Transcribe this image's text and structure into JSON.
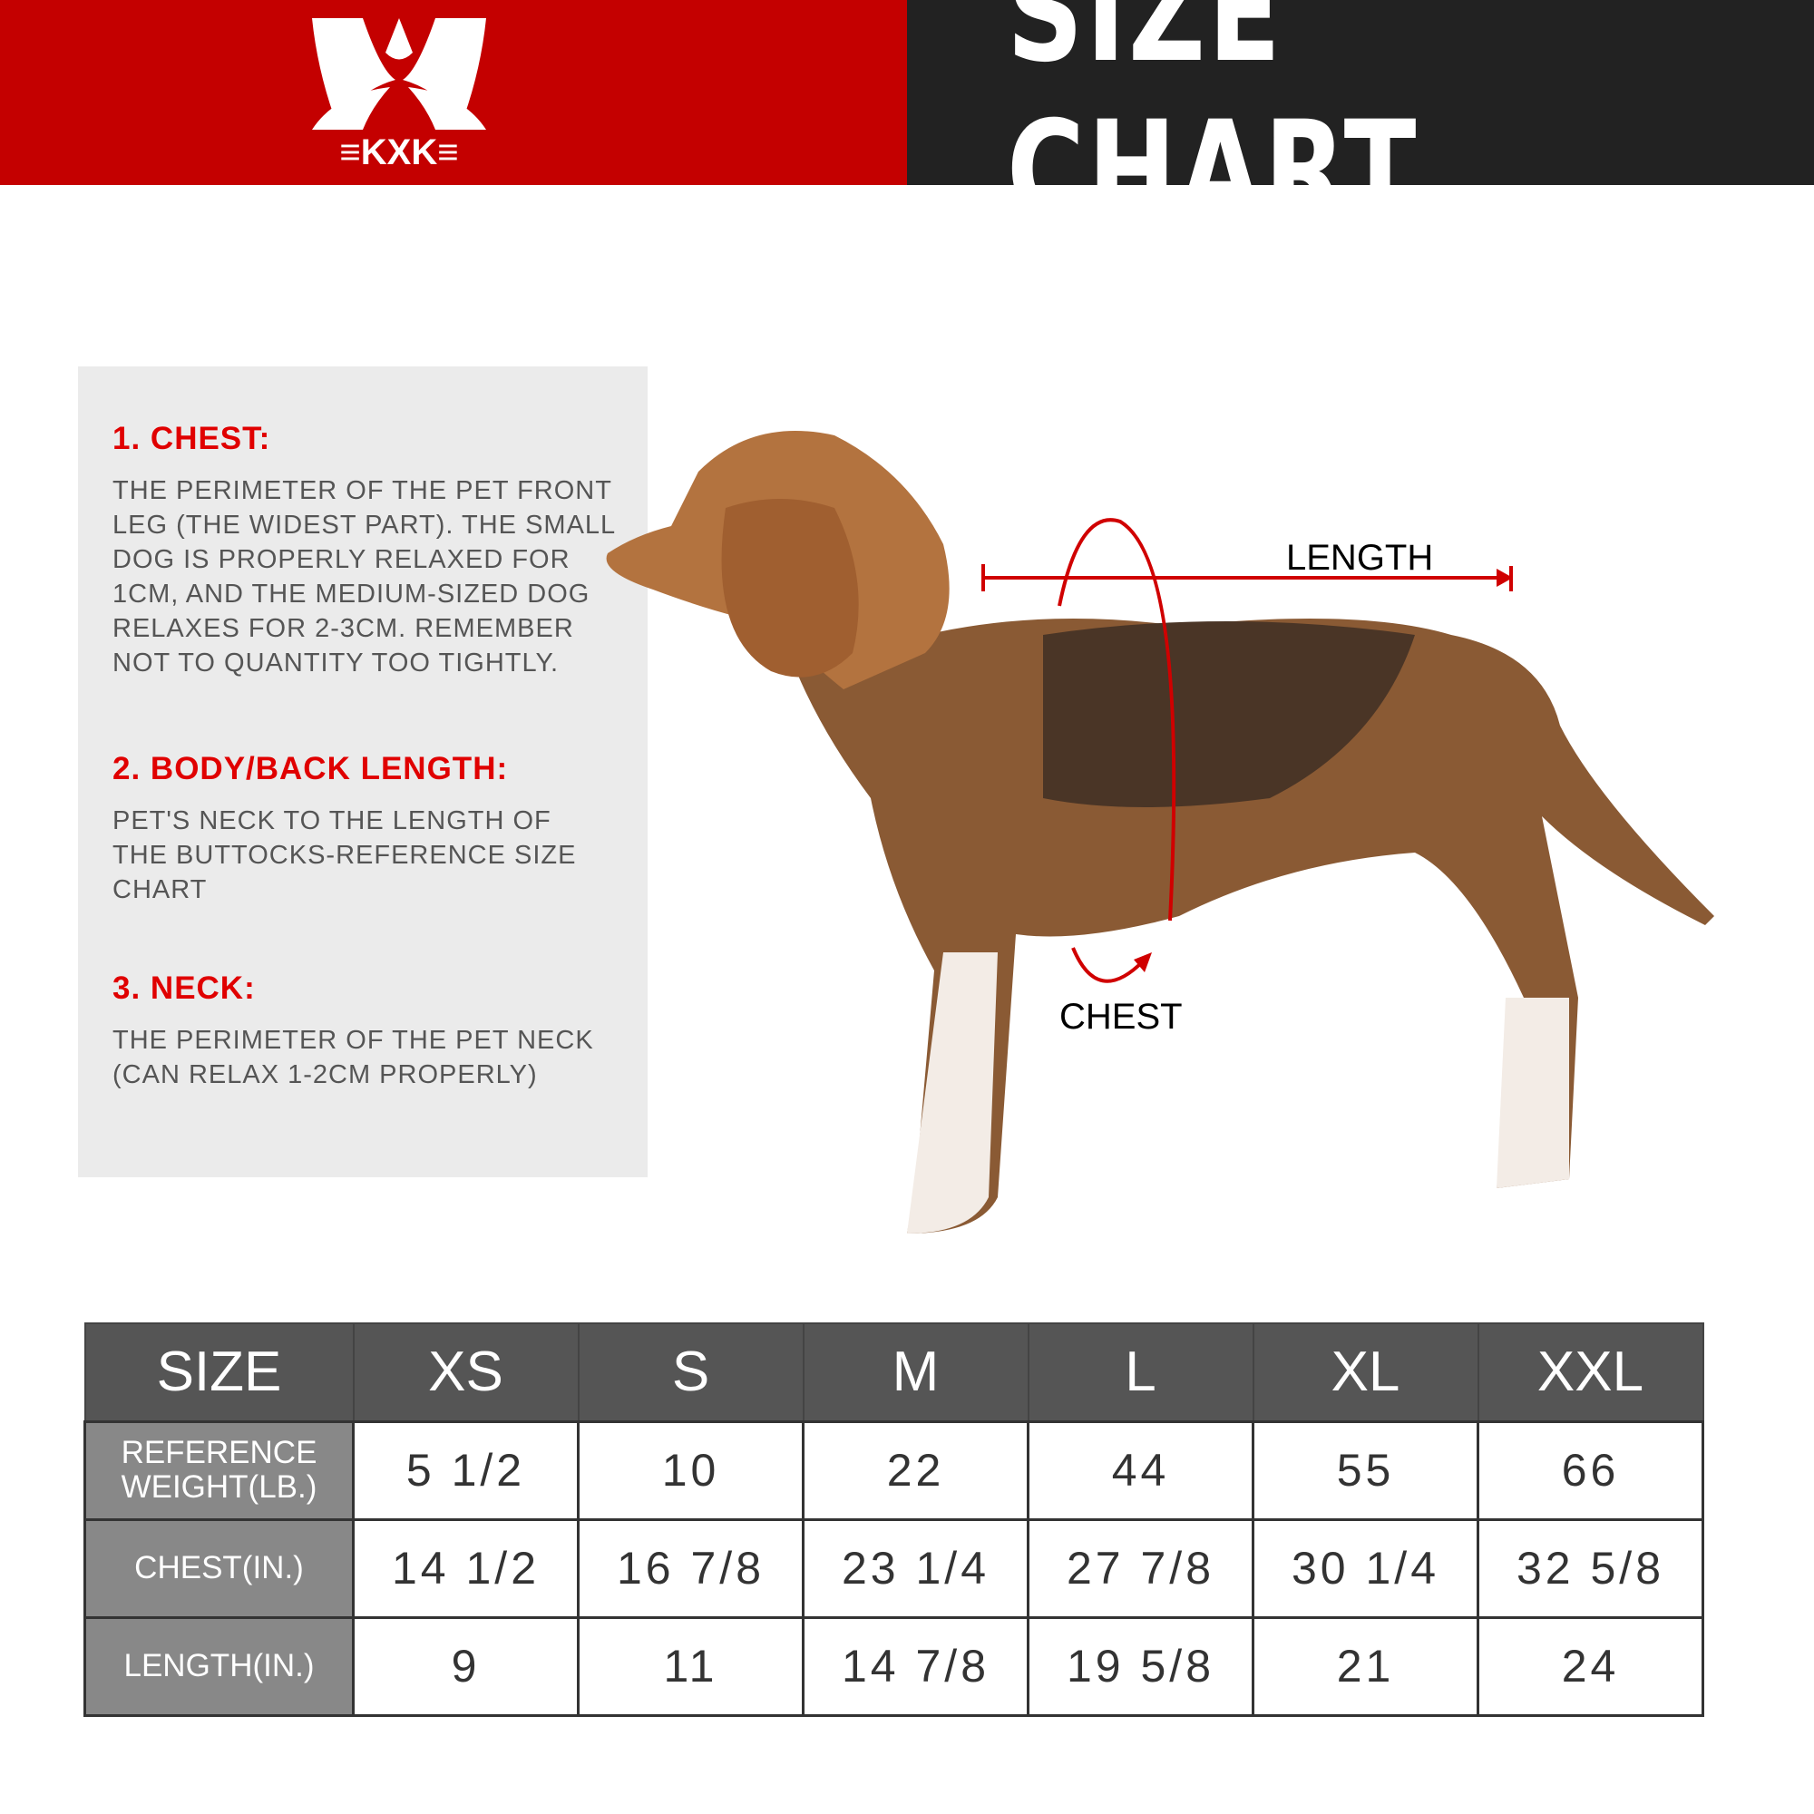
{
  "header": {
    "brand": "KXK",
    "title": "SIZE CHART",
    "colors": {
      "brand_red": "#c40000",
      "dark": "#222222",
      "accent": "#e00000"
    }
  },
  "guide": [
    {
      "heading": "1. CHEST:",
      "text": "THE PERIMETER OF THE PET FRONT\nLEG (THE WIDEST PART). THE SMALL\nDOG IS PROPERLY RELAXED FOR\n1CM, AND THE MEDIUM-SIZED DOG\nRELAXES FOR 2-3CM. REMEMBER\nNOT TO QUANTITY TOO TIGHTLY."
    },
    {
      "heading": "2. BODY/BACK LENGTH:",
      "text": "PET'S NECK TO THE LENGTH OF\nTHE BUTTOCKS-REFERENCE SIZE\nCHART"
    },
    {
      "heading": "3. NECK:",
      "text": "THE PERIMETER OF THE PET NECK\n (CAN RELAX 1-2CM PROPERLY)"
    }
  ],
  "figure": {
    "length_label": "LENGTH",
    "chest_label": "CHEST"
  },
  "table": {
    "headers": [
      "SIZE",
      "XS",
      "S",
      "M",
      "L",
      "XL",
      "XXL"
    ],
    "rows": [
      {
        "label": "REFERENCE WEIGHT(LB.)",
        "values": [
          "5 1/2",
          "10",
          "22",
          "44",
          "55",
          "66"
        ]
      },
      {
        "label": "CHEST(IN.)",
        "values": [
          "14 1/2",
          "16 7/8",
          "23 1/4",
          "27 7/8",
          "30 1/4",
          "32 5/8"
        ]
      },
      {
        "label": "LENGTH(IN.)",
        "values": [
          "9",
          "11",
          "14 7/8",
          "19 5/8",
          "21",
          "24"
        ]
      }
    ]
  }
}
